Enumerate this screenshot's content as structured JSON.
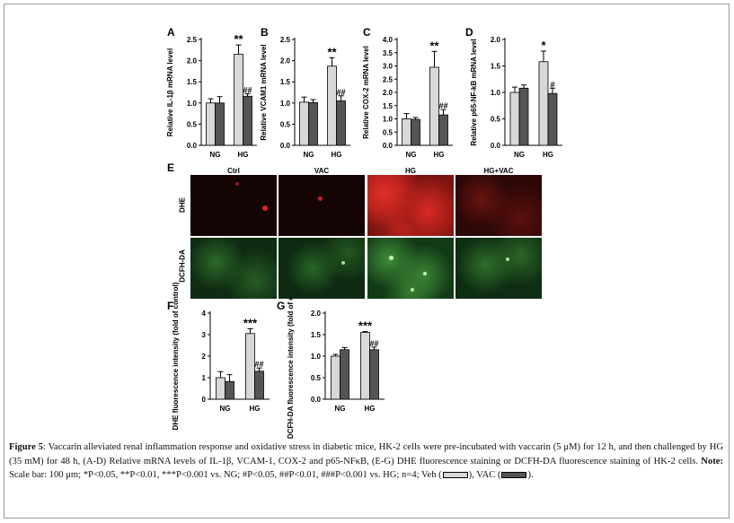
{
  "chart_data": [
    {
      "panel": "A",
      "type": "bar",
      "ylabel": "Relative IL-1β mRNA level",
      "categories": [
        "NG",
        "HG"
      ],
      "ylim": [
        0,
        2.5
      ],
      "yticks": [
        "0.0",
        "0.5",
        "1.0",
        "1.5",
        "2.0",
        "2.5"
      ],
      "ytick_values": [
        0,
        0.5,
        1,
        1.5,
        2,
        2.5
      ],
      "series": [
        {
          "values": [
            1.0,
            2.15
          ],
          "errors": [
            0.1,
            0.22
          ],
          "color": "#d8d8d8"
        },
        {
          "values": [
            1.0,
            1.16
          ],
          "errors": [
            0.15,
            0.06
          ],
          "color": "#555555"
        }
      ],
      "annotations": [
        {
          "category": 1,
          "series": 0,
          "text": "**"
        },
        {
          "category": 1,
          "series": 1,
          "text": "##"
        }
      ]
    },
    {
      "panel": "B",
      "type": "bar",
      "ylabel": "Relative VCAM1 mRNA level",
      "categories": [
        "NG",
        "HG"
      ],
      "ylim": [
        0,
        2.5
      ],
      "yticks": [
        "0.0",
        "0.5",
        "1.0",
        "1.5",
        "2.0",
        "2.5"
      ],
      "ytick_values": [
        0,
        0.5,
        1,
        1.5,
        2,
        2.5
      ],
      "series": [
        {
          "values": [
            1.02,
            1.87
          ],
          "errors": [
            0.12,
            0.2
          ],
          "color": "#d8d8d8"
        },
        {
          "values": [
            1.01,
            1.05
          ],
          "errors": [
            0.07,
            0.12
          ],
          "color": "#555555"
        }
      ],
      "annotations": [
        {
          "category": 1,
          "series": 0,
          "text": "**"
        },
        {
          "category": 1,
          "series": 1,
          "text": "##"
        }
      ]
    },
    {
      "panel": "C",
      "type": "bar",
      "ylabel": "Relative COX-2 mRNA level",
      "categories": [
        "NG",
        "HG"
      ],
      "ylim": [
        0,
        4.0
      ],
      "yticks": [
        "0.0",
        "0.5",
        "1.0",
        "1.5",
        "2.0",
        "2.5",
        "3.0",
        "3.5",
        "4.0"
      ],
      "ytick_values": [
        0,
        0.5,
        1,
        1.5,
        2,
        2.5,
        3,
        3.5,
        4
      ],
      "series": [
        {
          "values": [
            1.0,
            2.95
          ],
          "errors": [
            0.2,
            0.6
          ],
          "color": "#d8d8d8"
        },
        {
          "values": [
            0.98,
            1.15
          ],
          "errors": [
            0.07,
            0.2
          ],
          "color": "#555555"
        }
      ],
      "annotations": [
        {
          "category": 1,
          "series": 0,
          "text": "**"
        },
        {
          "category": 1,
          "series": 1,
          "text": "##"
        }
      ]
    },
    {
      "panel": "D",
      "type": "bar",
      "ylabel": "Relative p65-NF-kB mRNA level",
      "categories": [
        "NG",
        "HG"
      ],
      "ylim": [
        0,
        2.0
      ],
      "yticks": [
        "0.0",
        "0.5",
        "1.0",
        "1.5",
        "2.0"
      ],
      "ytick_values": [
        0,
        0.5,
        1,
        1.5,
        2
      ],
      "series": [
        {
          "values": [
            1.0,
            1.58
          ],
          "errors": [
            0.1,
            0.2
          ],
          "color": "#d8d8d8"
        },
        {
          "values": [
            1.08,
            0.98
          ],
          "errors": [
            0.06,
            0.1
          ],
          "color": "#555555"
        }
      ],
      "annotations": [
        {
          "category": 1,
          "series": 0,
          "text": "*"
        },
        {
          "category": 1,
          "series": 1,
          "text": "#"
        }
      ]
    },
    {
      "panel": "F",
      "type": "bar",
      "ylabel": "DHE fluorescence intensity (fold of control)",
      "categories": [
        "NG",
        "HG"
      ],
      "ylim": [
        0,
        4
      ],
      "yticks": [
        "0",
        "1",
        "2",
        "3",
        "4"
      ],
      "ytick_values": [
        0,
        1,
        2,
        3,
        4
      ],
      "series": [
        {
          "values": [
            1.0,
            3.05
          ],
          "errors": [
            0.28,
            0.22
          ],
          "color": "#d8d8d8"
        },
        {
          "values": [
            0.82,
            1.3
          ],
          "errors": [
            0.32,
            0.15
          ],
          "color": "#555555"
        }
      ],
      "annotations": [
        {
          "category": 1,
          "series": 0,
          "text": "***"
        },
        {
          "category": 1,
          "series": 1,
          "text": "##"
        }
      ]
    },
    {
      "panel": "G",
      "type": "bar",
      "ylabel": "DCFH-DA fluorescence intensity (fold of control)",
      "categories": [
        "NG",
        "HG"
      ],
      "ylim": [
        0,
        2.0
      ],
      "yticks": [
        "0.0",
        "0.5",
        "1.0",
        "1.5",
        "2.0"
      ],
      "ytick_values": [
        0,
        0.5,
        1,
        1.5,
        2
      ],
      "series": [
        {
          "values": [
            1.0,
            1.55
          ],
          "errors": [
            0.04,
            0.02
          ],
          "color": "#d8d8d8"
        },
        {
          "values": [
            1.15,
            1.15
          ],
          "errors": [
            0.05,
            0.06
          ],
          "color": "#555555"
        }
      ],
      "annotations": [
        {
          "category": 1,
          "series": 0,
          "text": "***"
        },
        {
          "category": 1,
          "series": 1,
          "text": "##"
        }
      ]
    }
  ],
  "panel_e": {
    "letter": "E",
    "columns": [
      "Ctrl",
      "VAC",
      "HG",
      "HG+VAC"
    ],
    "rows": [
      "DHE",
      "DCFH-DA"
    ]
  },
  "caption": {
    "lead": "Figure 5",
    "part1": ": Vaccarin alleviated renal inflammation response and oxidative stress in diabetic mice, HK-2 cells were pre-incubated with vaccarin (5 μM) for 12 h, and then challenged by HG (35 mM) for 48 h, (A-D) Relative mRNA levels of IL-1β, VCAM-1, COX-2 and p65-NFκB, (E-G) DHE fluorescence staining or DCFH-DA fluorescence staining of HK-2 cells. ",
    "note_label": "Note:",
    "part2": " Scale bar: 100 μm; *P<0.05, **P<0.01, ***P<0.001 vs. NG; #P<0.05, ##P<0.01, ###P<0.001 vs. HG; n=4; Veh (",
    "part3": "), VAC (",
    "part4": ")."
  },
  "colors": {
    "veh": "#d8d8d8",
    "vac": "#555555",
    "border": "#9a9a9a"
  }
}
